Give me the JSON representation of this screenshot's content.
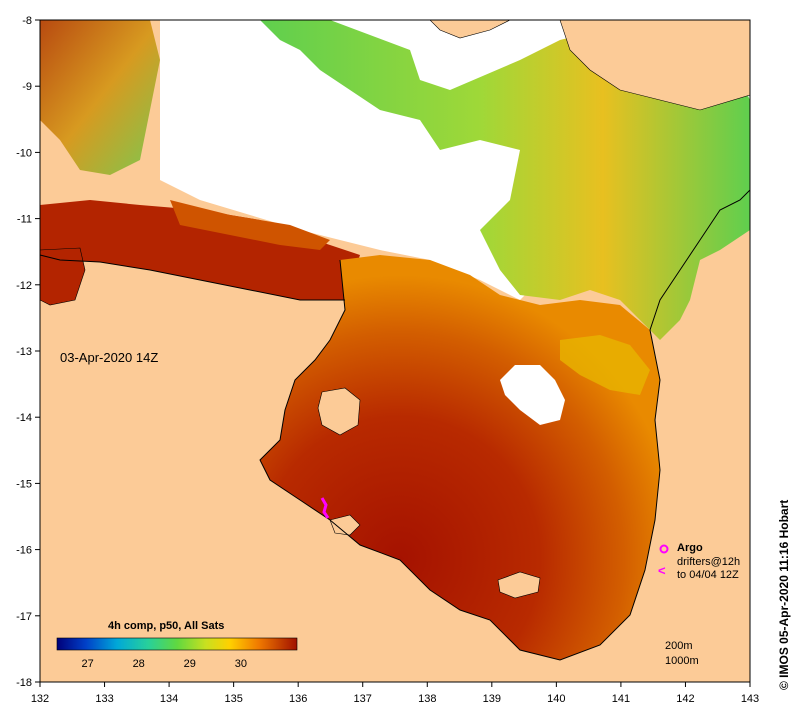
{
  "map": {
    "date_label": "03-Apr-2020 14Z",
    "credit": "© IMOS 05-Apr-2020 11:16 Hobart",
    "lon_ticks": [
      "132",
      "133",
      "134",
      "135",
      "136",
      "137",
      "138",
      "139",
      "140",
      "141",
      "142",
      "143"
    ],
    "lat_ticks": [
      "-8",
      "-9",
      "-10",
      "-11",
      "-12",
      "-13",
      "-14",
      "-15",
      "-16",
      "-17",
      "-18"
    ],
    "lon_range": [
      132,
      143
    ],
    "lat_range": [
      -8,
      -18
    ],
    "colors": {
      "land": "#fccb97",
      "no_data": "#ffffff",
      "sst_hot": "#a51200",
      "sst_warm": "#d36400",
      "sst_orange": "#f09a00",
      "sst_yellow": "#f5d800",
      "sst_green": "#5fd24a",
      "sst_cyan": "#1fb6c4",
      "argo": "#ff00ff"
    }
  },
  "colorbar": {
    "title": "4h comp, p50, All Sats",
    "ticks": [
      "27",
      "28",
      "29",
      "30"
    ]
  },
  "legend": {
    "argo_label": "Argo",
    "drifters_label": "drifters@12h",
    "drifters_range": "to 04/04 12Z",
    "depth_200": "200m",
    "depth_1000": "1000m"
  }
}
